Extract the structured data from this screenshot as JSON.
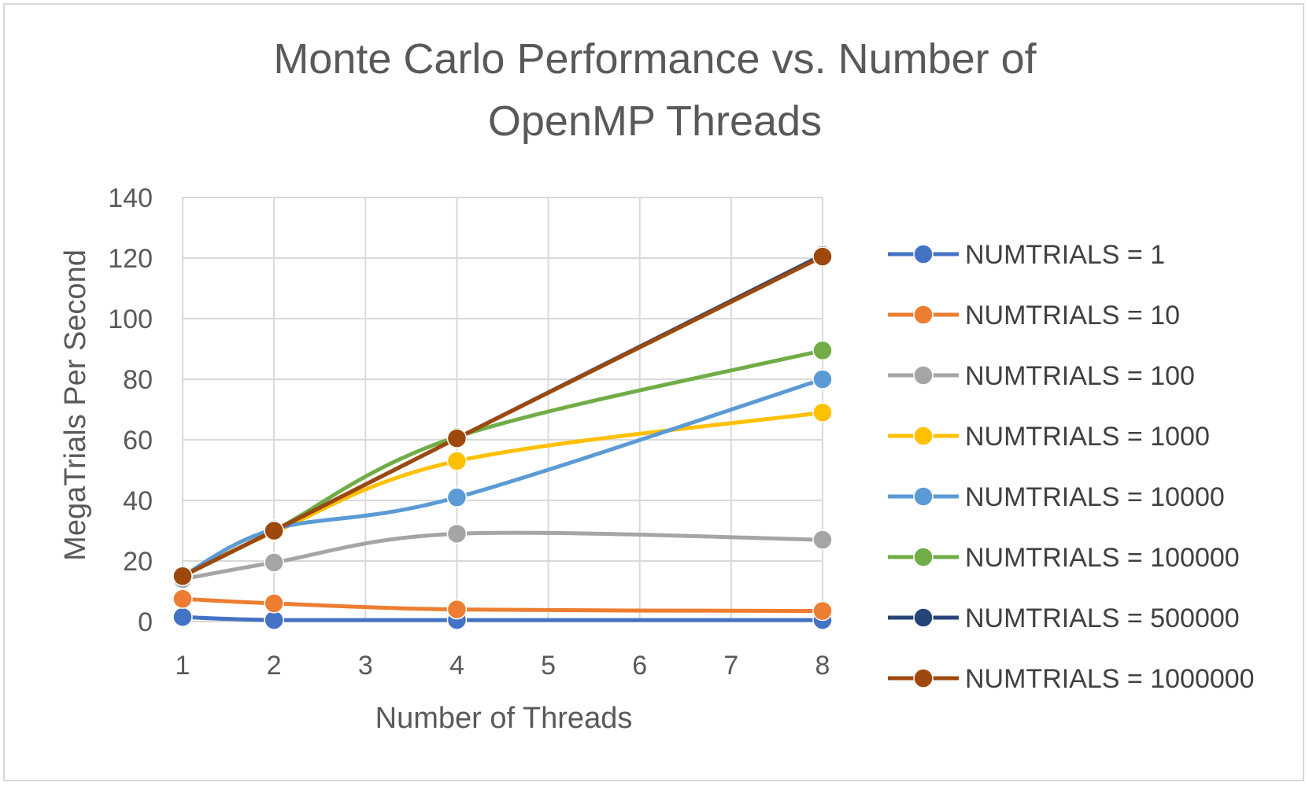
{
  "chart_data": {
    "type": "line",
    "title_lines": [
      "Monte Carlo Performance vs. Number of",
      "OpenMP Threads"
    ],
    "xlabel": "Number of Threads",
    "ylabel": "MegaTrials Per Second",
    "xlim": [
      1,
      8
    ],
    "ylim": [
      0,
      140
    ],
    "x_ticks": [
      "1",
      "2",
      "3",
      "4",
      "5",
      "6",
      "7",
      "8"
    ],
    "y_ticks": [
      "0",
      "20",
      "40",
      "60",
      "80",
      "100",
      "120",
      "140"
    ],
    "x_tick_values": [
      1,
      2,
      3,
      4,
      5,
      6,
      7,
      8
    ],
    "y_tick_values": [
      0,
      20,
      40,
      60,
      80,
      100,
      120,
      140
    ],
    "grid": true,
    "legend_position": "right",
    "x": [
      1,
      2,
      4,
      8
    ],
    "series": [
      {
        "name": "NUMTRIALS = 1",
        "color": "#4472C4",
        "values": [
          1.5,
          0.5,
          0.5,
          0.5
        ]
      },
      {
        "name": "NUMTRIALS = 10",
        "color": "#ED7D31",
        "values": [
          7.5,
          6,
          4,
          3.5
        ]
      },
      {
        "name": "NUMTRIALS = 100",
        "color": "#A5A5A5",
        "values": [
          14,
          19.5,
          29,
          27
        ]
      },
      {
        "name": "NUMTRIALS = 1000",
        "color": "#FFC000",
        "values": [
          15,
          29.5,
          53,
          69
        ]
      },
      {
        "name": "NUMTRIALS = 10000",
        "color": "#5B9BD5",
        "values": [
          15,
          30.5,
          41,
          80
        ]
      },
      {
        "name": "NUMTRIALS = 100000",
        "color": "#70AD47",
        "values": [
          15,
          30,
          61,
          89.5
        ]
      },
      {
        "name": "NUMTRIALS = 500000",
        "color": "#264478",
        "values": [
          15,
          30,
          60.5,
          121
        ]
      },
      {
        "name": "NUMTRIALS = 1000000",
        "color": "#9E480E",
        "values": [
          15,
          30,
          60.5,
          120.5
        ]
      }
    ]
  }
}
